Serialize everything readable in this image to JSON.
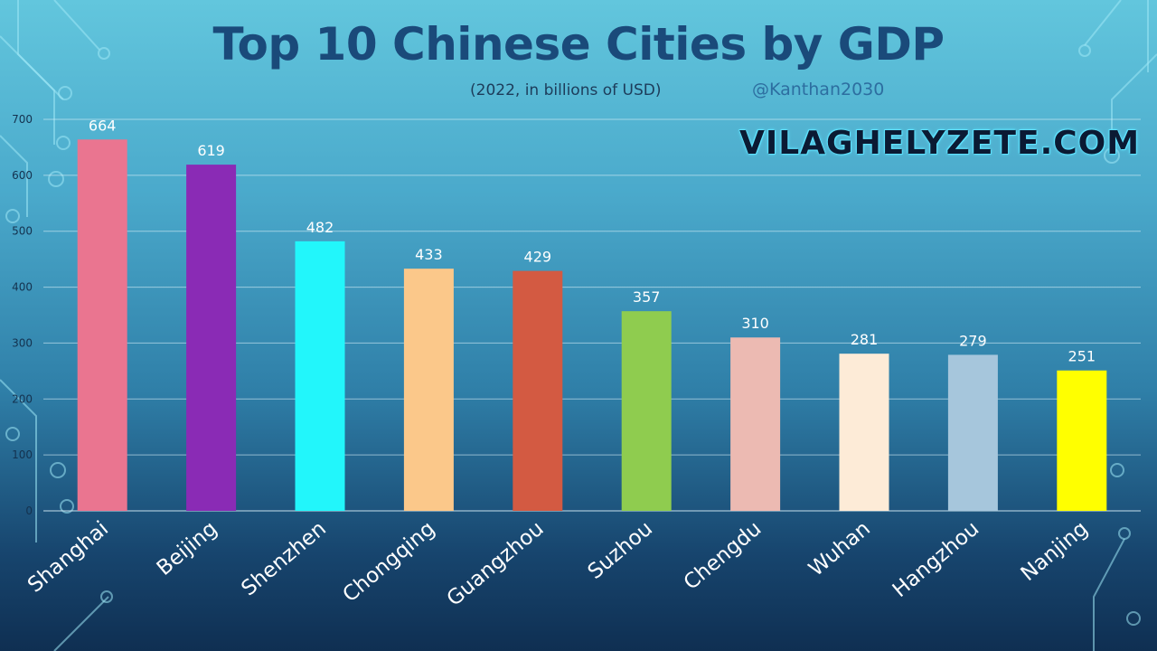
{
  "header": {
    "title": "Top 10 Chinese Cities by GDP",
    "subtitle": "(2022, in billions of USD)",
    "handle": "@Kanthan2030",
    "watermark": "VILAGHELYZETE.COM"
  },
  "chart_data": {
    "type": "bar",
    "title": "Top 10 Chinese Cities by GDP",
    "subtitle": "(2022, in billions of USD)",
    "categories": [
      "Shanghai",
      "Beijing",
      "Shenzhen",
      "Chongqing",
      "Guangzhou",
      "Suzhou",
      "Chengdu",
      "Wuhan",
      "Hangzhou",
      "Nanjing"
    ],
    "values": [
      664,
      619,
      482,
      433,
      429,
      357,
      310,
      281,
      279,
      251
    ],
    "colors": [
      "#ea7590",
      "#8a2bb5",
      "#22f6fb",
      "#fbc88a",
      "#d35a42",
      "#8fcc4f",
      "#ecbab2",
      "#fdebd7",
      "#a6c6dc",
      "#ffff00"
    ],
    "ylim": [
      0,
      700
    ],
    "yticks": [
      0,
      100,
      200,
      300,
      400,
      500,
      600,
      700
    ],
    "grid": true,
    "legend": "none",
    "xlabel": "",
    "ylabel": ""
  }
}
